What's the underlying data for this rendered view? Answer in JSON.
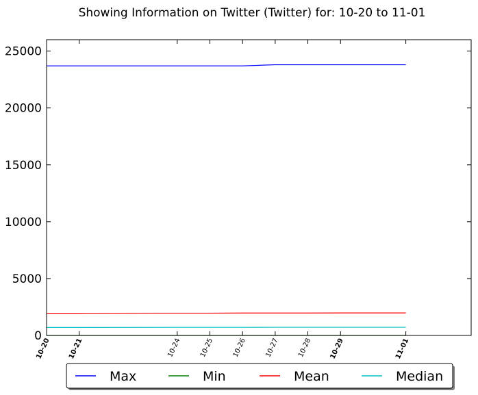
{
  "chart_data": {
    "type": "line",
    "title": "Showing Information on Twitter (Twitter) for: 10-20 to 11-01",
    "xlabel": "",
    "ylabel": "",
    "x": [
      "10-20",
      "10-21",
      "10-24",
      "10-25",
      "10-26",
      "10-27",
      "10-28",
      "10-29",
      "11-01"
    ],
    "xlim": [
      0,
      13
    ],
    "ylim": [
      0,
      26000
    ],
    "yticks": [
      0,
      5000,
      10000,
      15000,
      20000,
      25000
    ],
    "xticks": [
      {
        "label": "10-20",
        "pos": 0,
        "bold": true
      },
      {
        "label": "10-21",
        "pos": 1,
        "bold": true
      },
      {
        "label": "10-24",
        "pos": 4,
        "bold": false
      },
      {
        "label": "10-25",
        "pos": 5,
        "bold": false
      },
      {
        "label": "10-26",
        "pos": 6,
        "bold": false
      },
      {
        "label": "10-27",
        "pos": 7,
        "bold": false
      },
      {
        "label": "10-28",
        "pos": 8,
        "bold": false
      },
      {
        "label": "10-29",
        "pos": 9,
        "bold": true
      },
      {
        "label": "11-01",
        "pos": 11,
        "bold": true
      }
    ],
    "grid": false,
    "legend_position": "bottom",
    "series": [
      {
        "name": "Max",
        "color": "#0000ff",
        "points": [
          [
            0,
            23700
          ],
          [
            1,
            23700
          ],
          [
            4,
            23700
          ],
          [
            5,
            23700
          ],
          [
            6,
            23700
          ],
          [
            7,
            23800
          ],
          [
            8,
            23800
          ],
          [
            9,
            23800
          ],
          [
            11,
            23800
          ]
        ]
      },
      {
        "name": "Min",
        "color": "#008000",
        "points": [
          [
            0,
            0
          ],
          [
            1,
            0
          ],
          [
            4,
            0
          ],
          [
            5,
            0
          ],
          [
            6,
            0
          ],
          [
            7,
            0
          ],
          [
            8,
            0
          ],
          [
            9,
            0
          ],
          [
            11,
            0
          ]
        ]
      },
      {
        "name": "Mean",
        "color": "#ff0000",
        "points": [
          [
            0,
            1950
          ],
          [
            1,
            1950
          ],
          [
            4,
            1960
          ],
          [
            5,
            1960
          ],
          [
            6,
            1970
          ],
          [
            7,
            1970
          ],
          [
            8,
            1970
          ],
          [
            9,
            1980
          ],
          [
            11,
            1980
          ]
        ]
      },
      {
        "name": "Median",
        "color": "#00bfbf",
        "points": [
          [
            0,
            700
          ],
          [
            1,
            700
          ],
          [
            4,
            710
          ],
          [
            5,
            710
          ],
          [
            6,
            710
          ],
          [
            7,
            720
          ],
          [
            8,
            720
          ],
          [
            9,
            720
          ],
          [
            11,
            720
          ]
        ]
      }
    ]
  }
}
